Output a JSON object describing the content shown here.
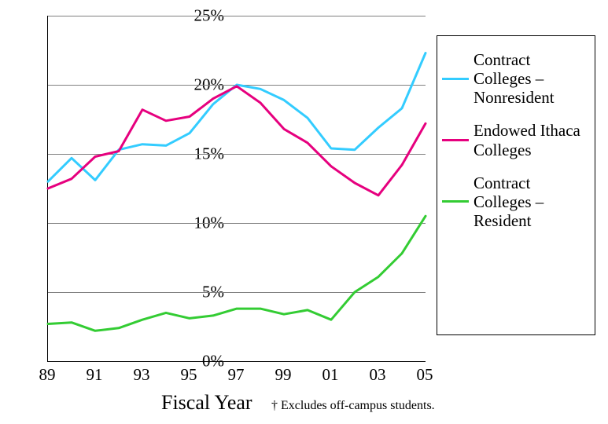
{
  "chart": {
    "type": "line",
    "background_color": "#ffffff",
    "grid_color": "#808080",
    "axis_color": "#000000",
    "line_width": 3,
    "x": {
      "values": [
        89,
        90,
        91,
        92,
        93,
        94,
        95,
        96,
        97,
        98,
        99,
        100,
        101,
        102,
        103,
        104,
        105
      ],
      "tick_values": [
        89,
        91,
        93,
        95,
        97,
        99,
        101,
        103,
        105
      ],
      "tick_labels": [
        "89",
        "91",
        "93",
        "95",
        "97",
        "99",
        "01",
        "03",
        "05"
      ],
      "title": "Fiscal Year",
      "title_fontsize": 26,
      "tick_fontsize": 21
    },
    "y": {
      "min": 0,
      "max": 25,
      "tick_values": [
        0,
        5,
        10,
        15,
        20,
        25
      ],
      "tick_labels": [
        "0%",
        "5%",
        "10%",
        "15%",
        "20%",
        "25%"
      ],
      "tick_fontsize": 21,
      "grid": true
    },
    "series": [
      {
        "key": "nonresident",
        "label": "Contract Colleges – Nonresident",
        "color": "#33ccff",
        "values": [
          13.0,
          14.7,
          13.1,
          15.3,
          15.7,
          15.6,
          16.5,
          18.6,
          20.0,
          19.7,
          18.9,
          17.6,
          15.4,
          15.3,
          16.9,
          18.3,
          22.3
        ]
      },
      {
        "key": "endowed",
        "label": "Endowed Ithaca Colleges",
        "color": "#e6007e",
        "values": [
          12.5,
          13.2,
          14.8,
          15.2,
          18.2,
          17.4,
          17.7,
          19.0,
          19.9,
          18.7,
          16.8,
          15.8,
          14.1,
          12.9,
          12.0,
          14.2,
          17.2
        ]
      },
      {
        "key": "resident",
        "label": "Contract Colleges – Resident",
        "color": "#33cc33",
        "values": [
          2.7,
          2.8,
          2.2,
          2.4,
          3.0,
          3.5,
          3.1,
          3.3,
          3.8,
          3.8,
          3.4,
          3.7,
          3.0,
          5.0,
          6.1,
          7.8,
          10.5
        ]
      }
    ],
    "footnote": "† Excludes off-campus students."
  }
}
